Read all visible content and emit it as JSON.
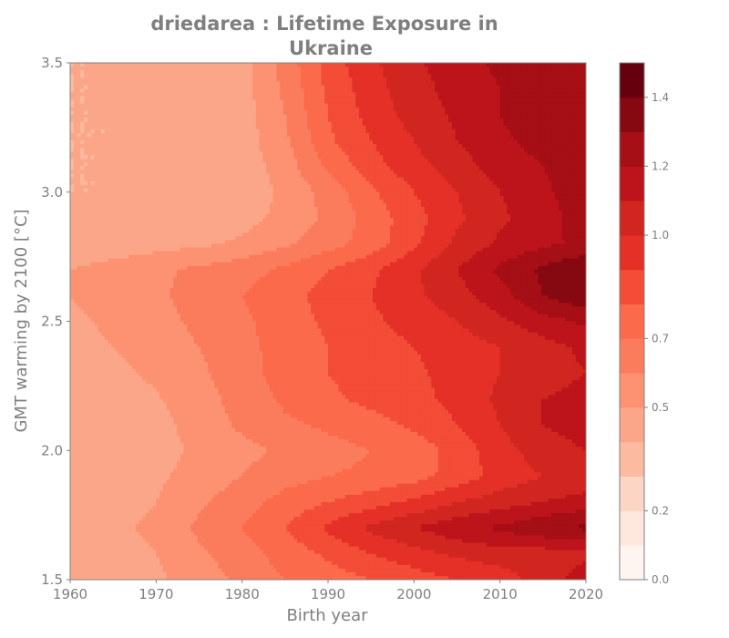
{
  "chart_data": {
    "type": "heatmap",
    "title_line1": "driedarea : Lifetime Exposure in",
    "title_line2": "Ukraine",
    "xlabel": "Birth year",
    "ylabel": "GMT warming by 2100 [°C]",
    "xlim": [
      1960,
      2020
    ],
    "ylim": [
      1.5,
      3.5
    ],
    "x_ticks": [
      1960,
      1970,
      1980,
      1990,
      2000,
      2010,
      2020
    ],
    "y_ticks": [
      1.5,
      2.0,
      2.5,
      3.0,
      3.5
    ],
    "x_tick_labels": [
      "1960",
      "1970",
      "1980",
      "1990",
      "2000",
      "2010",
      "2020"
    ],
    "y_tick_labels": [
      "1.5",
      "2.0",
      "2.5",
      "3.0",
      "3.5"
    ],
    "colorbar": {
      "min": 0.0,
      "max": 1.5,
      "tick_values": [
        0.0,
        0.2,
        0.5,
        0.7,
        1.0,
        1.2,
        1.4
      ],
      "tick_labels": [
        "0.0",
        "0.2",
        "0.5",
        "0.7",
        "1.0",
        "1.2",
        "1.4"
      ],
      "levels": [
        0.0,
        0.1,
        0.2,
        0.3,
        0.4,
        0.5,
        0.6,
        0.7,
        0.8,
        0.9,
        1.0,
        1.1,
        1.2,
        1.3,
        1.4,
        1.5
      ],
      "colors": [
        "#fff5f0",
        "#fee7dd",
        "#fdd5c4",
        "#fcbba1",
        "#fca689",
        "#fc9272",
        "#fb7c5c",
        "#fb6a4a",
        "#f34c37",
        "#e43027",
        "#d12620",
        "#bc141a",
        "#a50f15",
        "#860811",
        "#67000d"
      ]
    },
    "x": [
      1960,
      1965,
      1970,
      1975,
      1980,
      1985,
      1990,
      1995,
      2000,
      2005,
      2010,
      2015,
      2020
    ],
    "y": [
      1.5,
      1.6,
      1.7,
      1.8,
      1.9,
      2.0,
      2.1,
      2.2,
      2.3,
      2.4,
      2.5,
      2.6,
      2.7,
      2.8,
      2.9,
      3.0,
      3.1,
      3.2,
      3.3,
      3.4,
      3.5
    ],
    "z": [
      [
        0.45,
        0.45,
        0.48,
        0.55,
        0.62,
        0.7,
        0.75,
        0.8,
        0.85,
        0.9,
        0.95,
        1.05,
        1.15
      ],
      [
        0.45,
        0.46,
        0.5,
        0.58,
        0.66,
        0.74,
        0.82,
        0.9,
        0.96,
        1.02,
        1.05,
        1.05,
        1.08
      ],
      [
        0.46,
        0.48,
        0.52,
        0.62,
        0.7,
        0.8,
        0.92,
        1.02,
        1.1,
        1.17,
        1.22,
        1.28,
        1.32
      ],
      [
        0.45,
        0.46,
        0.5,
        0.58,
        0.66,
        0.74,
        0.8,
        0.86,
        0.92,
        1.0,
        1.05,
        1.1,
        1.15
      ],
      [
        0.44,
        0.45,
        0.48,
        0.54,
        0.6,
        0.66,
        0.7,
        0.72,
        0.76,
        0.84,
        0.94,
        1.0,
        1.02
      ],
      [
        0.42,
        0.43,
        0.46,
        0.52,
        0.57,
        0.62,
        0.66,
        0.7,
        0.74,
        0.84,
        0.96,
        1.05,
        1.1
      ],
      [
        0.42,
        0.43,
        0.47,
        0.54,
        0.62,
        0.68,
        0.72,
        0.76,
        0.82,
        0.9,
        1.0,
        1.1,
        1.15
      ],
      [
        0.43,
        0.45,
        0.49,
        0.56,
        0.64,
        0.72,
        0.78,
        0.83,
        0.87,
        0.93,
        1.02,
        1.1,
        1.13
      ],
      [
        0.45,
        0.47,
        0.52,
        0.58,
        0.66,
        0.74,
        0.8,
        0.84,
        0.88,
        0.94,
        1.0,
        1.06,
        1.1
      ],
      [
        0.46,
        0.5,
        0.55,
        0.6,
        0.67,
        0.74,
        0.8,
        0.85,
        0.9,
        0.95,
        1.0,
        1.06,
        1.12
      ],
      [
        0.48,
        0.52,
        0.57,
        0.62,
        0.68,
        0.75,
        0.82,
        0.88,
        0.94,
        1.0,
        1.08,
        1.16,
        1.22
      ],
      [
        0.5,
        0.54,
        0.58,
        0.64,
        0.7,
        0.76,
        0.84,
        0.9,
        0.98,
        1.06,
        1.16,
        1.3,
        1.38
      ],
      [
        0.5,
        0.54,
        0.58,
        0.62,
        0.66,
        0.72,
        0.8,
        0.88,
        0.98,
        1.1,
        1.22,
        1.32,
        1.4
      ],
      [
        0.42,
        0.44,
        0.46,
        0.48,
        0.52,
        0.58,
        0.66,
        0.74,
        0.88,
        1.02,
        1.12,
        1.18,
        1.22
      ],
      [
        0.4,
        0.41,
        0.42,
        0.43,
        0.46,
        0.53,
        0.62,
        0.74,
        0.86,
        0.98,
        1.08,
        1.16,
        1.25
      ],
      [
        0.4,
        0.4,
        0.41,
        0.42,
        0.44,
        0.52,
        0.64,
        0.78,
        0.9,
        1.0,
        1.1,
        1.18,
        1.26
      ],
      [
        0.4,
        0.4,
        0.41,
        0.42,
        0.44,
        0.55,
        0.72,
        0.86,
        0.96,
        1.06,
        1.14,
        1.2,
        1.25
      ],
      [
        0.4,
        0.4,
        0.41,
        0.42,
        0.45,
        0.58,
        0.78,
        0.9,
        1.0,
        1.1,
        1.18,
        1.24,
        1.28
      ],
      [
        0.4,
        0.4,
        0.41,
        0.42,
        0.45,
        0.6,
        0.8,
        0.94,
        1.04,
        1.12,
        1.2,
        1.26,
        1.28
      ],
      [
        0.4,
        0.4,
        0.41,
        0.42,
        0.46,
        0.62,
        0.82,
        0.96,
        1.06,
        1.14,
        1.2,
        1.26,
        1.3
      ],
      [
        0.4,
        0.4,
        0.41,
        0.42,
        0.46,
        0.64,
        0.84,
        0.98,
        1.08,
        1.16,
        1.22,
        1.26,
        1.3
      ]
    ]
  }
}
